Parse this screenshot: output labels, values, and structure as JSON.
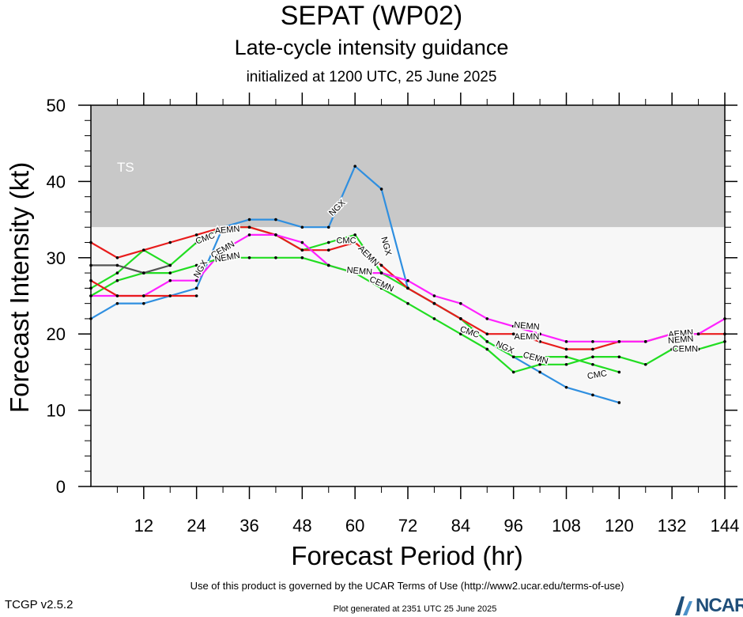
{
  "header": {
    "title": "SEPAT (WP02)",
    "subtitle": "Late-cycle intensity guidance",
    "init": "initialized at 1200 UTC, 25 June 2025"
  },
  "footer": {
    "terms": "Use of this product is governed by the UCAR Terms of Use (http://www2.ucar.edu/terms-of-use)",
    "generated": "Plot generated at 2351 UTC   25 June 2025",
    "version": "TCGP v2.5.2",
    "logo_text": "NCAR"
  },
  "chart_data": {
    "type": "line",
    "xlabel": "Forecast Period (hr)",
    "ylabel": "Forecast Intensity (kt)",
    "xlim": [
      0,
      144
    ],
    "ylim": [
      0,
      50
    ],
    "xticks": [
      12,
      24,
      36,
      48,
      60,
      72,
      84,
      96,
      108,
      120,
      132,
      144
    ],
    "yticks": [
      0,
      10,
      20,
      30,
      40,
      50
    ],
    "bands": [
      {
        "label": "TS",
        "from": 34,
        "to": 50,
        "color": "#c8c8c8"
      },
      {
        "label": "",
        "from": 0,
        "to": 34,
        "color": "#f7f7f7"
      }
    ],
    "series": [
      {
        "name": "NGX",
        "color": "#2f8fe0",
        "x": [
          0,
          6,
          12,
          18,
          24,
          30,
          36,
          42,
          48,
          54,
          60,
          66,
          72,
          78,
          84,
          90,
          96,
          102,
          108,
          114,
          120
        ],
        "y": [
          22,
          24,
          24,
          25,
          26,
          34,
          35,
          35,
          34,
          34,
          42,
          39,
          26,
          24,
          22,
          19,
          17,
          15,
          13,
          12,
          11
        ]
      },
      {
        "name": "CMC",
        "color": "#22dd22",
        "x": [
          0,
          6,
          12,
          18,
          24,
          30,
          36,
          42,
          48,
          54,
          60,
          66,
          72,
          78,
          84,
          90,
          96,
          102,
          108,
          114,
          120
        ],
        "y": [
          26,
          28,
          31,
          29,
          32,
          34,
          34,
          33,
          31,
          32,
          33,
          28,
          26,
          24,
          22,
          19,
          17,
          17,
          17,
          16,
          15
        ]
      },
      {
        "name": "AEMN",
        "color": "#e81c1c",
        "x": [
          0,
          6,
          12,
          18,
          24,
          30,
          36,
          42,
          48,
          54,
          60,
          66,
          72,
          78,
          84,
          90,
          96,
          102,
          108,
          114,
          120,
          126,
          132,
          138,
          144
        ],
        "y": [
          32,
          30,
          31,
          32,
          33,
          34,
          34,
          33,
          31,
          31,
          32,
          29,
          26,
          24,
          22,
          20,
          20,
          19,
          18,
          18,
          19,
          19,
          20,
          20,
          20
        ]
      },
      {
        "name": "NEMN",
        "color": "#ff22ff",
        "x": [
          0,
          6,
          12,
          18,
          24,
          30,
          36,
          42,
          48,
          54,
          60,
          66,
          72,
          78,
          84,
          90,
          96,
          102,
          108,
          114,
          120,
          126,
          132,
          138,
          144
        ],
        "y": [
          25,
          25,
          25,
          27,
          27,
          31,
          33,
          33,
          32,
          29,
          28,
          28,
          27,
          25,
          24,
          22,
          21,
          20,
          19,
          19,
          19,
          19,
          20,
          20,
          22
        ]
      },
      {
        "name": "CEMN",
        "color": "#22dd22",
        "x": [
          0,
          6,
          12,
          18,
          24,
          30,
          36,
          42,
          48,
          54,
          60,
          66,
          72,
          78,
          84,
          90,
          96,
          102,
          108,
          114,
          120,
          126,
          132,
          138,
          144
        ],
        "y": [
          25,
          27,
          28,
          28,
          29,
          30,
          30,
          30,
          30,
          29,
          28,
          26,
          24,
          22,
          20,
          18,
          15,
          16,
          16,
          17,
          17,
          16,
          18,
          18,
          19
        ]
      },
      {
        "name": "",
        "color": "#555555",
        "x": [
          0,
          6,
          12,
          18
        ],
        "y": [
          29,
          29,
          28,
          29
        ]
      },
      {
        "name": "",
        "color": "#e81c1c",
        "x": [
          0,
          6,
          12,
          18,
          24
        ],
        "y": [
          27,
          25,
          25,
          25,
          25
        ]
      }
    ],
    "labels": [
      {
        "text": "NGX",
        "x": 25,
        "y": 28.5,
        "rot": -60
      },
      {
        "text": "CMC",
        "x": 26,
        "y": 32.5,
        "rot": -20
      },
      {
        "text": "AEMN",
        "x": 31,
        "y": 33.6,
        "rot": -5
      },
      {
        "text": "CEMN",
        "x": 30,
        "y": 31,
        "rot": -30
      },
      {
        "text": "NEMN",
        "x": 31,
        "y": 30,
        "rot": -10
      },
      {
        "text": "NGX",
        "x": 56,
        "y": 36.5,
        "rot": -45
      },
      {
        "text": "CMC",
        "x": 58,
        "y": 32.2,
        "rot": 0
      },
      {
        "text": "AEMN",
        "x": 63,
        "y": 30.2,
        "rot": 45
      },
      {
        "text": "NEMN",
        "x": 61,
        "y": 28.2,
        "rot": 5
      },
      {
        "text": "NGX",
        "x": 67,
        "y": 31.5,
        "rot": 75
      },
      {
        "text": "CEMN",
        "x": 66,
        "y": 26.5,
        "rot": 25
      },
      {
        "text": "CMC",
        "x": 86,
        "y": 20.2,
        "rot": 20
      },
      {
        "text": "NEMN",
        "x": 99,
        "y": 21.0,
        "rot": 5
      },
      {
        "text": "AEMN",
        "x": 99,
        "y": 19.6,
        "rot": 0
      },
      {
        "text": "NGX",
        "x": 94,
        "y": 18.2,
        "rot": 25
      },
      {
        "text": "CEMN",
        "x": 101,
        "y": 16.8,
        "rot": 15
      },
      {
        "text": "CMC",
        "x": 115,
        "y": 14.6,
        "rot": -10
      },
      {
        "text": "AEMN",
        "x": 134,
        "y": 20.0,
        "rot": -5
      },
      {
        "text": "NEMN",
        "x": 134,
        "y": 19.2,
        "rot": -5
      },
      {
        "text": "CEMN",
        "x": 135,
        "y": 18.0,
        "rot": 0
      }
    ]
  }
}
